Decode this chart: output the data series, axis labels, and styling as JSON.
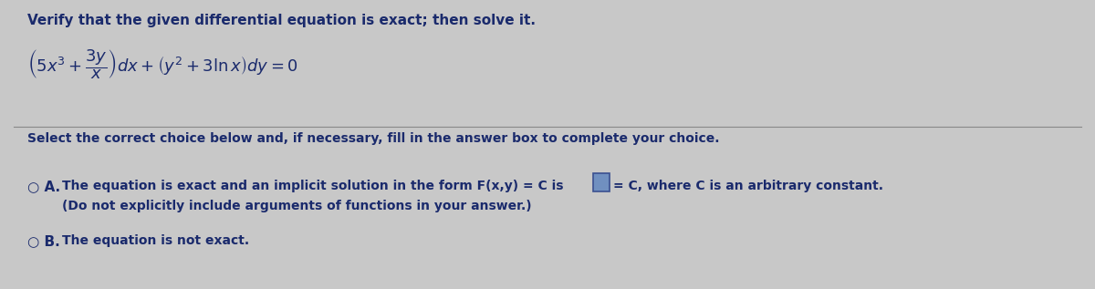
{
  "background_color": "#c8c8c8",
  "text_color": "#1a2a6c",
  "title_text": "Verify that the given differential equation is exact; then solve it.",
  "select_text": "Select the correct choice below and, if necessary, fill in the answer box to complete your choice.",
  "option_a_circle": "○ A.",
  "option_a_main": "The equation is exact and an implicit solution in the form F(x,y) = C is",
  "option_a_suffix": "= C, where C is an arbitrary constant.",
  "option_a_sub": "(Do not explicitly include arguments of functions in your answer.)",
  "option_b_circle": "○ B.",
  "option_b_text": "The equation is not exact.",
  "box_facecolor": "#7090c0",
  "box_edgecolor": "#3a5090",
  "separator_color": "#888888",
  "title_fontsize": 11,
  "body_fontsize": 10,
  "eq_fontsize": 13
}
